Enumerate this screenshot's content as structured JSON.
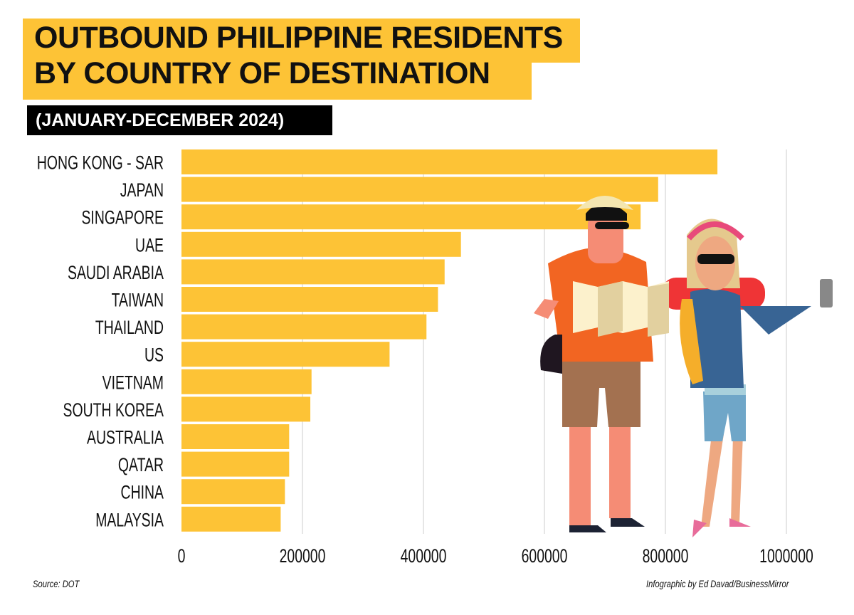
{
  "title_lines": [
    "OUTBOUND PHILIPPINE RESIDENTS",
    "BY COUNTRY OF DESTINATION"
  ],
  "subtitle": "(JANUARY-DECEMBER 2024)",
  "source": "Source: DOT",
  "credit": "Infographic by Ed Davad/BusinessMirror",
  "colors": {
    "bar": "#FDC336",
    "title_bg": "#FDC336",
    "subtitle_bg": "#000000",
    "grid": "#cccccc"
  },
  "chart_data": {
    "type": "bar",
    "orientation": "horizontal",
    "title": "OUTBOUND PHILIPPINE RESIDENTS BY COUNTRY OF DESTINATION",
    "subtitle": "(JANUARY-DECEMBER 2024)",
    "categories": [
      "HONG KONG - SAR",
      "JAPAN",
      "SINGAPORE",
      "UAE",
      "SAUDI ARABIA",
      "TAIWAN",
      "THAILAND",
      "US",
      "VIETNAM",
      "SOUTH KOREA",
      "AUSTRALIA",
      "QATAR",
      "CHINA",
      "MALAYSIA"
    ],
    "values": [
      886000,
      788000,
      759000,
      462000,
      435000,
      424000,
      405000,
      344000,
      215000,
      213000,
      178000,
      178000,
      171000,
      164000
    ],
    "xlim": [
      0,
      1000000
    ],
    "xticks": [
      "0",
      "200000",
      "400000",
      "600000",
      "800000",
      "1000000"
    ],
    "grid": true
  }
}
